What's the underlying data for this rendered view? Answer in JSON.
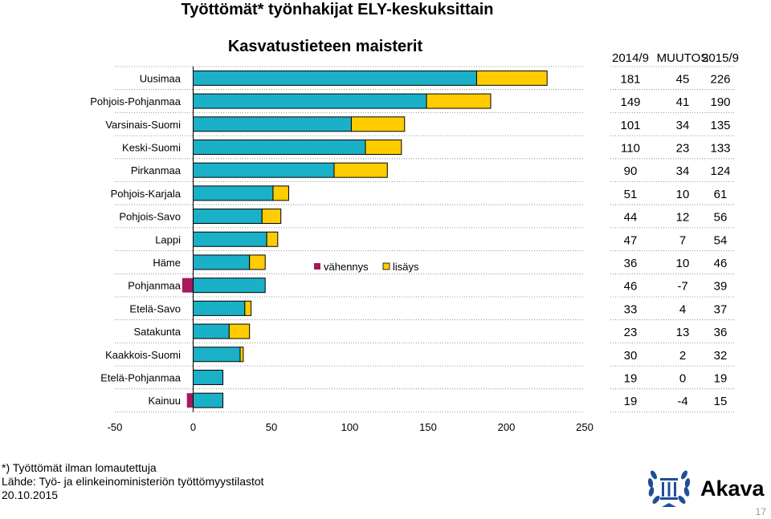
{
  "title": "Työttömät* työnhakijat ELY-keskuksittain",
  "chart_data": {
    "type": "bar",
    "orientation": "horizontal",
    "stacked": true,
    "title": "Kasvatustieteen maisterit",
    "categories": [
      "Uusimaa",
      "Pohjois-Pohjanmaa",
      "Varsinais-Suomi",
      "Keski-Suomi",
      "Pirkanmaa",
      "Pohjois-Karjala",
      "Pohjois-Savo",
      "Lappi",
      "Häme",
      "Pohjanmaa",
      "Etelä-Savo",
      "Satakunta",
      "Kaakkois-Suomi",
      "Etelä-Pohjanmaa",
      "Kainuu"
    ],
    "base_2014_9": [
      181,
      149,
      101,
      110,
      90,
      51,
      44,
      47,
      36,
      46,
      33,
      23,
      30,
      19,
      19
    ],
    "change": [
      45,
      41,
      34,
      23,
      34,
      10,
      12,
      7,
      10,
      -7,
      4,
      13,
      2,
      0,
      -4
    ],
    "value_2015_9": [
      226,
      190,
      135,
      133,
      124,
      61,
      56,
      54,
      46,
      39,
      37,
      36,
      32,
      19,
      15
    ],
    "series": [
      {
        "name": "vähennys",
        "color": "#a8185c"
      },
      {
        "name": "lisäys",
        "color": "#ffcc00"
      }
    ],
    "base_color": "#1ab0c8",
    "xlim": [
      -50,
      250
    ],
    "xticks": [
      -50,
      0,
      50,
      100,
      150,
      200,
      250
    ],
    "legend_position": "center",
    "grid": "horizontal dotted",
    "table_headers": [
      "2014/9",
      "MUUTOS",
      "2015/9"
    ]
  },
  "footnotes": [
    "*) Työttömät ilman lomautettuja",
    "Lähde: Työ- ja elinkeinoministeriön työttömyystilastot",
    "20.10.2015"
  ],
  "logo": {
    "text": "Akava",
    "color": "#1f4e97"
  },
  "page_number": "17"
}
